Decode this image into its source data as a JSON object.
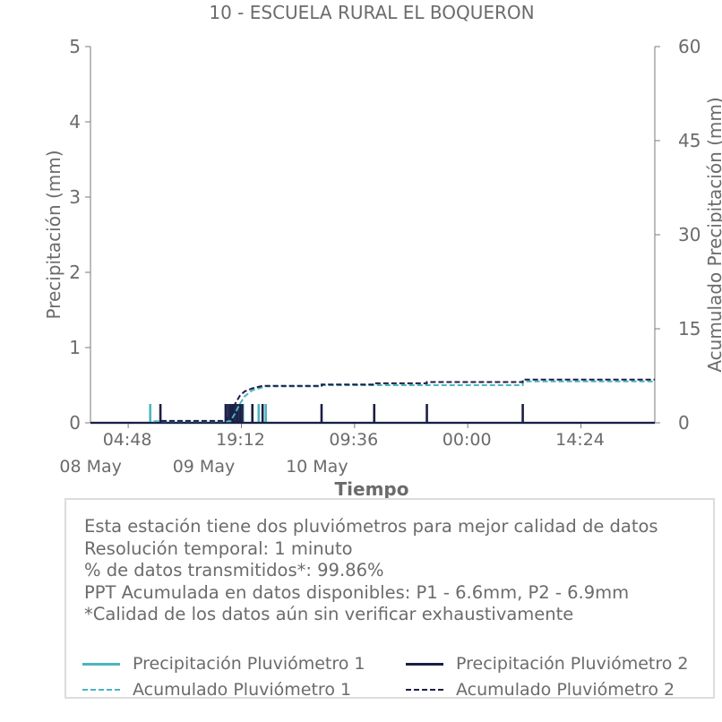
{
  "chart_data": {
    "type": "line",
    "title": "10 - ESCUELA RURAL EL BOQUERON",
    "xlabel": "Tiempo",
    "ylabel_left": "Precipitación (mm)",
    "ylabel_right": "Acumulado Precipitación (mm)",
    "ylim_left": [
      0,
      5
    ],
    "ylim_right": [
      0,
      60
    ],
    "yticks_left": [
      "0",
      "1",
      "2",
      "3",
      "4",
      "5"
    ],
    "yticks_right": [
      "0",
      "15",
      "30",
      "45",
      "60"
    ],
    "xticks": [
      {
        "t": 4.8,
        "label": "04:48",
        "date": "08 May"
      },
      {
        "t": 19.2,
        "label": "19:12",
        "date": "09 May"
      },
      {
        "t": 33.6,
        "label": "09:36",
        "date": "10 May"
      },
      {
        "t": 48.0,
        "label": "00:00",
        "date": ""
      },
      {
        "t": 62.4,
        "label": "14:24",
        "date": ""
      }
    ],
    "x_range_hours": [
      0,
      71.8
    ],
    "series": [
      {
        "name": "Precipitación Pluviómetro 1",
        "style": "solid",
        "color": "#4bb5c1",
        "axis": "left",
        "points": [
          [
            7.6,
            0.25
          ],
          [
            17.8,
            0.25
          ],
          [
            18.2,
            0.25
          ],
          [
            18.6,
            0.25
          ],
          [
            19.0,
            0.25
          ],
          [
            19.4,
            0.25
          ],
          [
            20.6,
            0.25
          ],
          [
            21.4,
            0.25
          ],
          [
            22.3,
            0.25
          ]
        ]
      },
      {
        "name": "Precipitación Pluviómetro 2",
        "style": "solid",
        "color": "#1b1f45",
        "axis": "left",
        "points": [
          [
            8.9,
            0.25
          ],
          [
            17.2,
            0.25
          ],
          [
            17.5,
            0.25
          ],
          [
            17.8,
            0.25
          ],
          [
            18.1,
            0.25
          ],
          [
            18.4,
            0.25
          ],
          [
            18.7,
            0.25
          ],
          [
            19.0,
            0.25
          ],
          [
            19.3,
            0.25
          ],
          [
            20.6,
            0.25
          ],
          [
            21.9,
            0.25
          ],
          [
            29.4,
            0.25
          ],
          [
            36.1,
            0.25
          ],
          [
            42.8,
            0.25
          ],
          [
            55.0,
            0.25
          ]
        ]
      },
      {
        "name": "Acumulado Pluviómetro 1",
        "style": "dashed",
        "color": "#4bb5c1",
        "axis": "right",
        "points": [
          [
            0,
            0
          ],
          [
            7.6,
            0
          ],
          [
            7.6,
            0.25
          ],
          [
            17.8,
            0.25
          ],
          [
            18.4,
            1.5
          ],
          [
            19.0,
            3.0
          ],
          [
            19.6,
            4.2
          ],
          [
            20.6,
            5.2
          ],
          [
            22.3,
            5.8
          ],
          [
            29.4,
            5.8
          ],
          [
            29.4,
            6.0
          ],
          [
            55.0,
            6.0
          ],
          [
            55.0,
            6.6
          ],
          [
            71.8,
            6.6
          ]
        ]
      },
      {
        "name": "Acumulado Pluviómetro 2",
        "style": "dashed",
        "color": "#1b1f45",
        "axis": "right",
        "points": [
          [
            0,
            0
          ],
          [
            8.9,
            0
          ],
          [
            8.9,
            0.3
          ],
          [
            17.2,
            0.3
          ],
          [
            17.8,
            1.5
          ],
          [
            18.4,
            3.0
          ],
          [
            19.0,
            4.3
          ],
          [
            19.6,
            5.0
          ],
          [
            20.6,
            5.5
          ],
          [
            21.9,
            5.9
          ],
          [
            29.4,
            5.9
          ],
          [
            29.4,
            6.1
          ],
          [
            36.1,
            6.1
          ],
          [
            36.1,
            6.3
          ],
          [
            42.8,
            6.3
          ],
          [
            42.8,
            6.5
          ],
          [
            55.0,
            6.5
          ],
          [
            55.0,
            6.9
          ],
          [
            71.8,
            6.9
          ]
        ]
      }
    ],
    "grid": false,
    "legend": "bottom"
  },
  "info": {
    "lines": [
      "Esta estación tiene dos pluviómetros para mejor calidad de datos",
      "Resolución temporal: 1 minuto",
      "% de datos transmitidos*: 99.86%",
      "PPT Acumulada en datos disponibles: P1 - 6.6mm, P2 - 6.9mm",
      "*Calidad de los datos aún sin verificar exhaustivamente"
    ]
  },
  "legend": {
    "items": [
      {
        "label": "Precipitación Pluviómetro 1",
        "color": "#4bb5c1",
        "style": "solid"
      },
      {
        "label": "Precipitación Pluviómetro 2",
        "color": "#1b1f45",
        "style": "solid"
      },
      {
        "label": "Acumulado Pluviómetro 1",
        "color": "#4bb5c1",
        "style": "dashed"
      },
      {
        "label": "Acumulado Pluviómetro 2",
        "color": "#1b1f45",
        "style": "dashed"
      }
    ]
  }
}
